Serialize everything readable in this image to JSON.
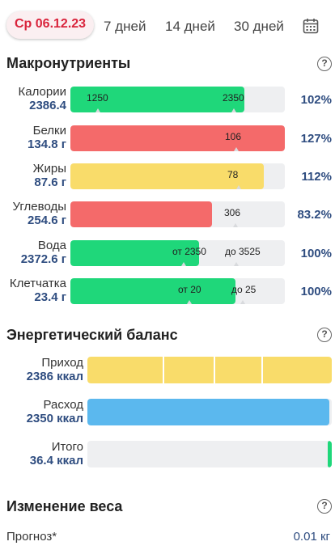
{
  "tabs": [
    {
      "label": "Ср 06.12.23",
      "active": true
    },
    {
      "label": "7 дней"
    },
    {
      "label": "14 дней"
    },
    {
      "label": "30 дней"
    }
  ],
  "macros": {
    "title": "Макронутриенты",
    "rows": [
      {
        "label": "Калории",
        "value": "2386.4",
        "percent": "102%",
        "fill": 0.81,
        "color": "#1fd77a",
        "ticks": [
          "1250",
          "2350"
        ]
      },
      {
        "label": "Белки",
        "value": "134.8 г",
        "percent": "127%",
        "fill": 1.0,
        "color": "#f46a6a",
        "ticks": [
          "106"
        ]
      },
      {
        "label": "Жиры",
        "value": "87.6 г",
        "percent": "112%",
        "fill": 0.9,
        "color": "#f9dc6a",
        "ticks": [
          "78"
        ]
      },
      {
        "label": "Углеводы",
        "value": "254.6 г",
        "percent": "83.2%",
        "fill": 0.66,
        "color": "#f46a6a",
        "ticks": [
          "306"
        ]
      },
      {
        "label": "Вода",
        "value": "2372.6 г",
        "percent": "100%",
        "fill": 0.6,
        "color": "#1fd77a",
        "ticks": [
          "от 2350",
          "до 3525"
        ]
      },
      {
        "label": "Клетчатка",
        "value": "23.4 г",
        "percent": "100%",
        "fill": 0.77,
        "color": "#1fd77a",
        "ticks": [
          "от 20",
          "до 25"
        ]
      }
    ]
  },
  "energy": {
    "title": "Энергетический баланс",
    "rows": [
      {
        "label": "Приход",
        "value": "2386 ккал",
        "fill": 1.0,
        "color": "#f9dc6a"
      },
      {
        "label": "Расход",
        "value": "2350 ккал",
        "fill": 0.99,
        "color": "#5bb8ee"
      },
      {
        "label": "Итого",
        "value": "36.4 ккал",
        "fill": 0.015,
        "color": "#1fd77a"
      }
    ]
  },
  "weight": {
    "title": "Изменение веса",
    "forecast_label": "Прогноз*",
    "forecast_value": "0.01 кг"
  },
  "help_symbol": "?"
}
